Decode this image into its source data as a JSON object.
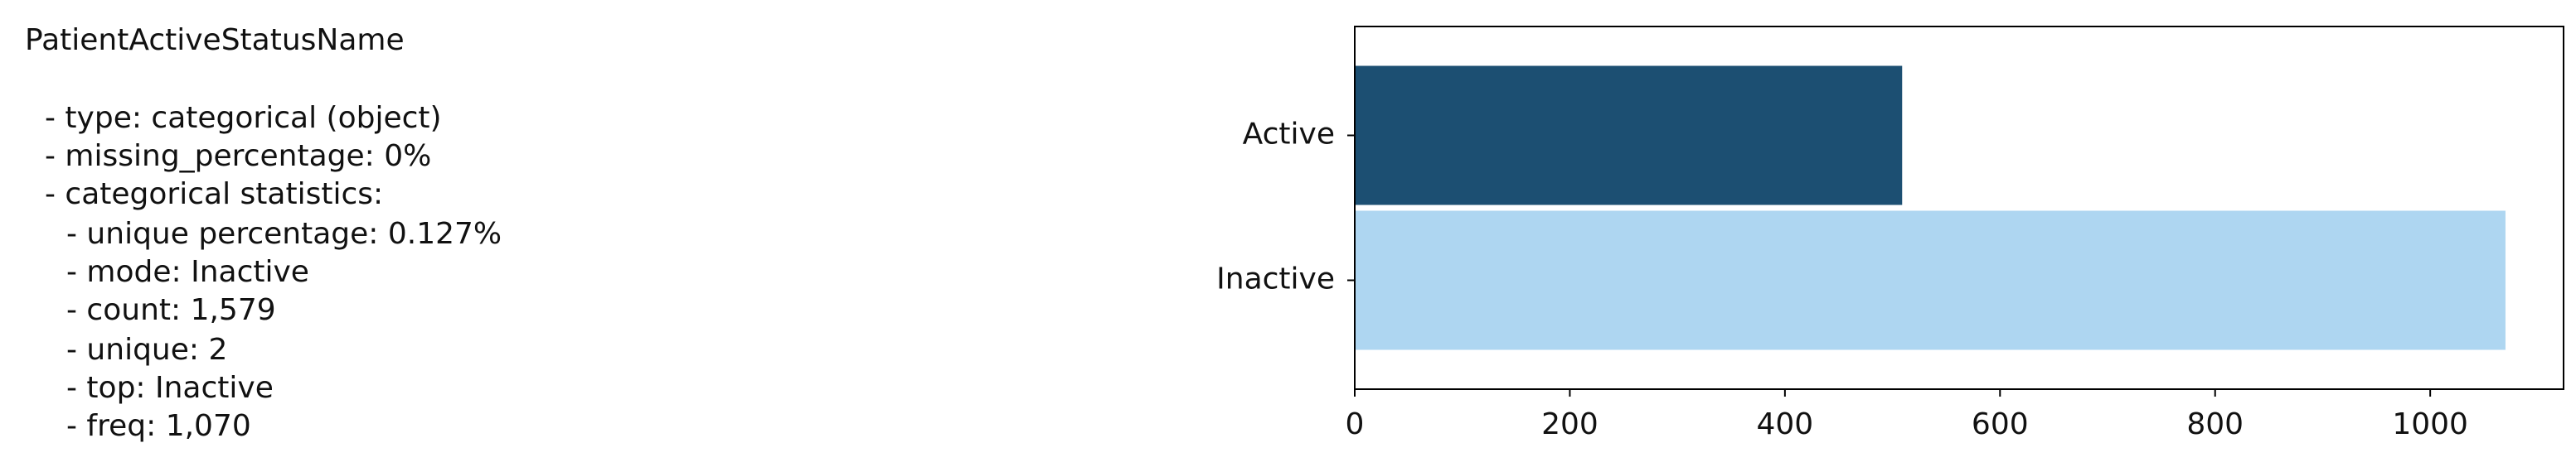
{
  "summary": {
    "title": "PatientActiveStatusName",
    "lines": [
      "- type: categorical (object)",
      "- missing_percentage: 0%",
      "- categorical statistics:",
      "- unique percentage: 0.127%",
      "- mode: Inactive",
      "- count: 1,579",
      "- unique: 2",
      "- top: Inactive",
      "- freq: 1,070"
    ]
  },
  "chart_data": {
    "type": "bar",
    "orientation": "horizontal",
    "categories": [
      "Active",
      "Inactive"
    ],
    "values": [
      509,
      1070
    ],
    "colors": [
      "#1c4f72",
      "#aed6f1"
    ],
    "xlim": [
      0,
      1124
    ],
    "xticks": [
      0,
      200,
      400,
      600,
      800,
      1000
    ],
    "grid": false
  }
}
